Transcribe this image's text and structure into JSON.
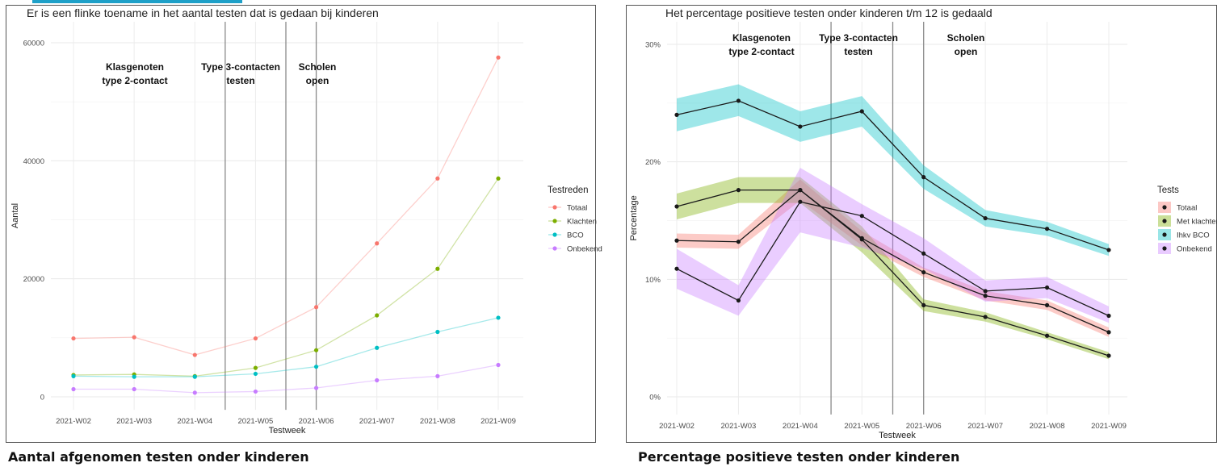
{
  "captions": {
    "left": "Aantal afgenomen testen onder kinderen",
    "right": "Percentage positieve testen onder kinderen"
  },
  "annotations": [
    {
      "lines": [
        "Klasgenoten",
        "type 2-contact"
      ]
    },
    {
      "lines": [
        "Type 3-contacten",
        "testen"
      ]
    },
    {
      "lines": [
        "Scholen",
        "open"
      ]
    }
  ],
  "chart_data": [
    {
      "type": "line",
      "title": "Er is een flinke toename in het aantal testen dat is gedaan bij kinderen",
      "xlabel": "Testweek",
      "ylabel": "Aantal",
      "x": [
        "2021-W02",
        "2021-W03",
        "2021-W04",
        "2021-W05",
        "2021-W06",
        "2021-W07",
        "2021-W08",
        "2021-W09"
      ],
      "ylim": [
        -2200,
        62000
      ],
      "yticks": [
        0,
        20000,
        40000,
        60000
      ],
      "ytick_labels": [
        "0",
        "20000",
        "40000",
        "60000"
      ],
      "vlines": [
        3.5,
        4.5,
        5.0
      ],
      "grid": true,
      "legend": {
        "title": "Testreden",
        "position": "right"
      },
      "series": [
        {
          "name": "Totaal",
          "color": "#F8766D",
          "values": [
            9900,
            10100,
            7100,
            9900,
            15200,
            26000,
            37000,
            57500
          ]
        },
        {
          "name": "Klachten",
          "color": "#7CAE00",
          "values": [
            3700,
            3800,
            3500,
            4900,
            7900,
            13800,
            21700,
            37000
          ]
        },
        {
          "name": "BCO",
          "color": "#00BFC4",
          "values": [
            3500,
            3400,
            3400,
            3900,
            5100,
            8300,
            11000,
            13400
          ]
        },
        {
          "name": "Onbekend",
          "color": "#C77CFF",
          "values": [
            1300,
            1300,
            700,
            900,
            1500,
            2800,
            3500,
            5400
          ]
        }
      ]
    },
    {
      "type": "line",
      "title": "Het percentage positieve testen onder kinderen t/m 12 is gedaald",
      "xlabel": "Testweek",
      "ylabel": "Percentage",
      "x": [
        "2021-W02",
        "2021-W03",
        "2021-W04",
        "2021-W05",
        "2021-W06",
        "2021-W07",
        "2021-W08",
        "2021-W09"
      ],
      "ylim": [
        -1.5,
        31.5
      ],
      "yticks": [
        0,
        10,
        20,
        30
      ],
      "ytick_labels": [
        "0%",
        "10%",
        "20%",
        "30%"
      ],
      "vlines": [
        3.5,
        4.5,
        5.0
      ],
      "grid": true,
      "legend": {
        "title": "Tests",
        "position": "right"
      },
      "line_color": "#1a1a1a",
      "series": [
        {
          "name": "Totaal",
          "color": "#F8766D",
          "values": [
            13.3,
            13.2,
            17.6,
            13.5,
            10.6,
            8.6,
            7.8,
            5.5
          ],
          "lower": [
            12.7,
            12.6,
            16.7,
            12.9,
            10.2,
            8.2,
            7.4,
            5.1
          ],
          "upper": [
            13.9,
            13.8,
            18.5,
            14.1,
            11.0,
            9.0,
            8.2,
            5.9
          ]
        },
        {
          "name": "Met klachten",
          "color": "#7CAE00",
          "values": [
            16.2,
            17.6,
            17.6,
            13.4,
            7.8,
            6.8,
            5.2,
            3.5
          ],
          "lower": [
            15.1,
            16.5,
            16.5,
            12.3,
            7.3,
            6.4,
            4.9,
            3.2
          ],
          "upper": [
            17.3,
            18.7,
            18.7,
            14.5,
            8.3,
            7.2,
            5.5,
            3.8
          ]
        },
        {
          "name": "Ihkv BCO",
          "color": "#00BFC4",
          "values": [
            24.0,
            25.2,
            23.0,
            24.3,
            18.7,
            15.2,
            14.3,
            12.5
          ],
          "lower": [
            22.6,
            23.9,
            21.7,
            23.0,
            17.7,
            14.5,
            13.7,
            12.0
          ],
          "upper": [
            25.4,
            26.6,
            24.3,
            25.6,
            19.7,
            15.9,
            14.9,
            13.0
          ]
        },
        {
          "name": "Onbekend",
          "color": "#C77CFF",
          "values": [
            10.9,
            8.2,
            16.6,
            15.4,
            12.2,
            9.0,
            9.3,
            6.9
          ],
          "lower": [
            9.2,
            6.9,
            14.0,
            12.7,
            10.9,
            8.1,
            8.4,
            6.3
          ],
          "upper": [
            12.6,
            9.5,
            19.5,
            16.4,
            13.5,
            9.9,
            10.2,
            7.7
          ]
        }
      ]
    }
  ]
}
